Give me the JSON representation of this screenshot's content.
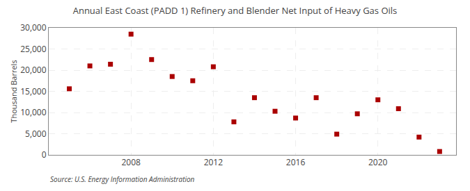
{
  "chart_data": {
    "type": "scatter",
    "title": "Annual East Coast (PADD 1) Refinery and Blender Net Input of Heavy Gas Oils",
    "ylabel": "Thousand Barrels",
    "annotations": [
      "Source: U.S. Energy Information Administration"
    ],
    "x": [
      2005,
      2006,
      2007,
      2008,
      2009,
      2010,
      2011,
      2012,
      2013,
      2014,
      2015,
      2016,
      2017,
      2018,
      2019,
      2020,
      2021,
      2022,
      2023
    ],
    "values": [
      15600,
      21000,
      21400,
      28500,
      22500,
      18500,
      17500,
      20800,
      7800,
      13500,
      10300,
      8700,
      13500,
      4900,
      9700,
      13000,
      10900,
      4200,
      800
    ],
    "color": "#aa0000",
    "marker": "square",
    "xlim": [
      2004.0,
      2023.8
    ],
    "xticks": [
      2008,
      2012,
      2016,
      2020
    ],
    "ylim": [
      0,
      30000
    ],
    "yticks": [
      0,
      {
        "value": 5000,
        "label": "5,000"
      },
      {
        "value": 10000,
        "label": "10,000"
      },
      {
        "value": 15000,
        "label": "15,000"
      },
      {
        "value": 20000,
        "label": "20,000"
      },
      {
        "value": 25000,
        "label": "25,000"
      },
      {
        "value": 30000,
        "label": "30,000"
      }
    ],
    "grid": true
  }
}
